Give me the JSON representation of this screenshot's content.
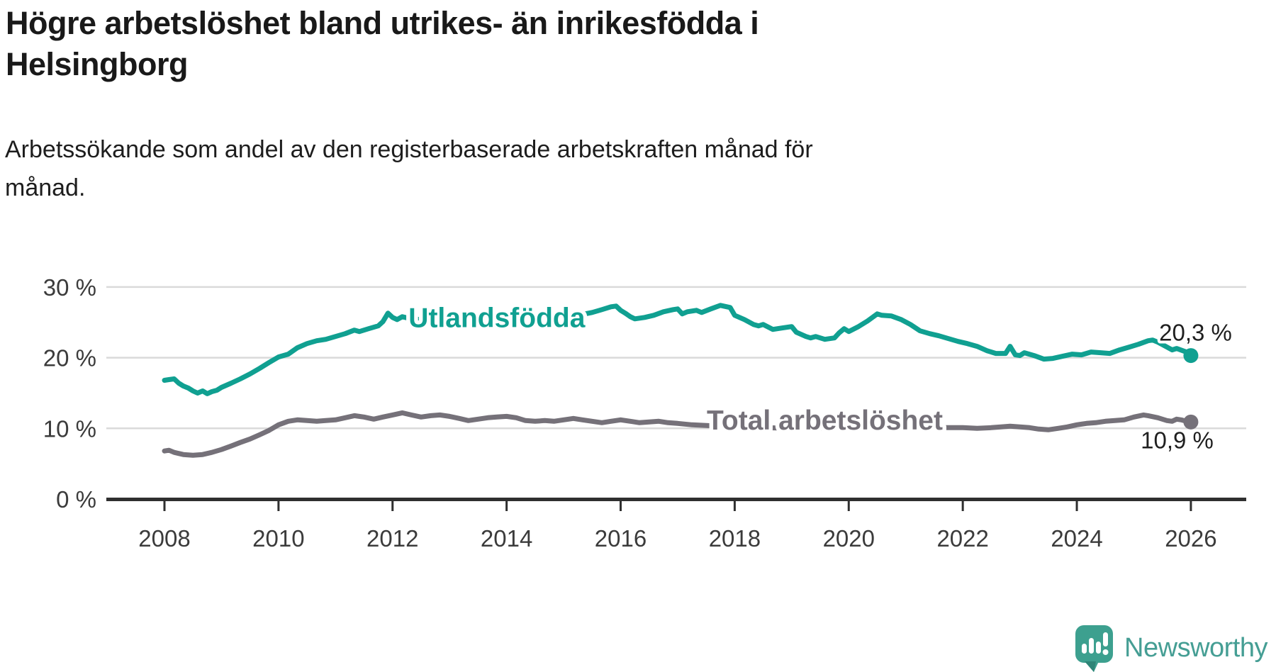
{
  "header": {
    "title_line1": "Högre arbetslöshet bland utrikes- än inrikesfödda i",
    "title_line2": "Helsingborg",
    "subtitle_line1": "Arbetssökande som andel av den registerbaserade arbetskraften månad för",
    "subtitle_line2": "månad."
  },
  "footer": {
    "brand": "Newsworthy",
    "logo_icon": "newsworthy-speech-bubble-bar-chart",
    "brand_color": "#3da08f"
  },
  "colors": {
    "teal_series": "#10a091",
    "gray_series": "#757179",
    "gridline": "#dadada",
    "axis_line": "#2f2f2f",
    "axis_text": "#3b3b3b",
    "annotation_text": "#1f1f1f",
    "background": "#ffffff"
  },
  "chart_data": {
    "type": "line",
    "title": "Högre arbetslöshet bland utrikes- än inrikesfödda i Helsingborg",
    "subtitle": "Arbetssökande som andel av den registerbaserade arbetskraften månad för månad.",
    "xlabel": "",
    "ylabel": "",
    "x_axis": {
      "ticks": [
        2008,
        2010,
        2012,
        2014,
        2016,
        2018,
        2020,
        2022,
        2024,
        2026
      ],
      "tick_labels": [
        "2008",
        "2010",
        "2012",
        "2014",
        "2016",
        "2018",
        "2020",
        "2022",
        "2024",
        "2026"
      ]
    },
    "y_axis": {
      "min": 0,
      "max": 30,
      "unit": "%",
      "ticks": [
        {
          "value": 0,
          "label": "0 %"
        },
        {
          "value": 10,
          "label": "10 %"
        },
        {
          "value": 20,
          "label": "20 %"
        },
        {
          "value": 30,
          "label": "30 %"
        }
      ]
    },
    "grid": "horizontal-only",
    "legend": "inline-labels",
    "series": [
      {
        "name": "Utlandsfödda",
        "color": "#10a091",
        "end_value": 20.3,
        "end_label": "20,3 %",
        "end_label_offset": {
          "dx": 58,
          "dy": -21,
          "anchor": "end"
        },
        "inline_label": {
          "at_year": 2012.28,
          "at_value": 24.3,
          "anchor": "start"
        },
        "points": [
          [
            2008.0,
            16.8
          ],
          [
            2008.08,
            16.9
          ],
          [
            2008.17,
            17.0
          ],
          [
            2008.25,
            16.4
          ],
          [
            2008.33,
            16.0
          ],
          [
            2008.42,
            15.7
          ],
          [
            2008.5,
            15.3
          ],
          [
            2008.58,
            15.0
          ],
          [
            2008.67,
            15.3
          ],
          [
            2008.75,
            14.9
          ],
          [
            2008.83,
            15.2
          ],
          [
            2008.92,
            15.4
          ],
          [
            2009.0,
            15.8
          ],
          [
            2009.17,
            16.4
          ],
          [
            2009.33,
            17.0
          ],
          [
            2009.5,
            17.7
          ],
          [
            2009.67,
            18.5
          ],
          [
            2009.83,
            19.3
          ],
          [
            2010.0,
            20.1
          ],
          [
            2010.17,
            20.5
          ],
          [
            2010.33,
            21.4
          ],
          [
            2010.5,
            22.0
          ],
          [
            2010.67,
            22.4
          ],
          [
            2010.83,
            22.6
          ],
          [
            2011.0,
            23.0
          ],
          [
            2011.17,
            23.4
          ],
          [
            2011.33,
            23.9
          ],
          [
            2011.42,
            23.7
          ],
          [
            2011.58,
            24.1
          ],
          [
            2011.75,
            24.5
          ],
          [
            2011.83,
            25.1
          ],
          [
            2011.92,
            26.3
          ],
          [
            2012.0,
            25.7
          ],
          [
            2012.08,
            25.4
          ],
          [
            2012.17,
            25.8
          ],
          [
            2012.33,
            25.5
          ],
          [
            2012.5,
            25.4
          ],
          [
            2012.75,
            25.6
          ],
          [
            2013.0,
            25.3
          ],
          [
            2013.25,
            25.2
          ],
          [
            2013.5,
            25.4
          ],
          [
            2013.75,
            25.2
          ],
          [
            2014.0,
            25.4
          ],
          [
            2014.25,
            25.3
          ],
          [
            2014.5,
            25.5
          ],
          [
            2014.75,
            25.4
          ],
          [
            2015.0,
            25.7
          ],
          [
            2015.25,
            26.0
          ],
          [
            2015.5,
            26.4
          ],
          [
            2015.67,
            26.8
          ],
          [
            2015.83,
            27.2
          ],
          [
            2015.92,
            27.3
          ],
          [
            2016.0,
            26.7
          ],
          [
            2016.08,
            26.3
          ],
          [
            2016.17,
            25.8
          ],
          [
            2016.25,
            25.5
          ],
          [
            2016.42,
            25.7
          ],
          [
            2016.58,
            26.0
          ],
          [
            2016.75,
            26.5
          ],
          [
            2016.92,
            26.8
          ],
          [
            2017.0,
            26.9
          ],
          [
            2017.08,
            26.2
          ],
          [
            2017.17,
            26.5
          ],
          [
            2017.33,
            26.7
          ],
          [
            2017.42,
            26.4
          ],
          [
            2017.58,
            26.9
          ],
          [
            2017.75,
            27.4
          ],
          [
            2017.92,
            27.1
          ],
          [
            2018.0,
            26.0
          ],
          [
            2018.17,
            25.4
          ],
          [
            2018.33,
            24.7
          ],
          [
            2018.42,
            24.5
          ],
          [
            2018.5,
            24.7
          ],
          [
            2018.67,
            24.0
          ],
          [
            2018.83,
            24.2
          ],
          [
            2019.0,
            24.4
          ],
          [
            2019.08,
            23.6
          ],
          [
            2019.25,
            23.0
          ],
          [
            2019.33,
            22.8
          ],
          [
            2019.42,
            23.0
          ],
          [
            2019.58,
            22.6
          ],
          [
            2019.75,
            22.8
          ],
          [
            2019.83,
            23.5
          ],
          [
            2019.92,
            24.1
          ],
          [
            2020.0,
            23.7
          ],
          [
            2020.17,
            24.4
          ],
          [
            2020.33,
            25.2
          ],
          [
            2020.5,
            26.2
          ],
          [
            2020.58,
            26.0
          ],
          [
            2020.75,
            25.9
          ],
          [
            2020.92,
            25.4
          ],
          [
            2021.08,
            24.7
          ],
          [
            2021.25,
            23.8
          ],
          [
            2021.42,
            23.4
          ],
          [
            2021.58,
            23.1
          ],
          [
            2021.75,
            22.7
          ],
          [
            2021.92,
            22.3
          ],
          [
            2022.08,
            22.0
          ],
          [
            2022.25,
            21.6
          ],
          [
            2022.42,
            21.0
          ],
          [
            2022.58,
            20.6
          ],
          [
            2022.75,
            20.6
          ],
          [
            2022.83,
            21.6
          ],
          [
            2022.92,
            20.4
          ],
          [
            2023.0,
            20.3
          ],
          [
            2023.08,
            20.7
          ],
          [
            2023.25,
            20.3
          ],
          [
            2023.42,
            19.8
          ],
          [
            2023.58,
            19.9
          ],
          [
            2023.75,
            20.2
          ],
          [
            2023.92,
            20.5
          ],
          [
            2024.08,
            20.4
          ],
          [
            2024.25,
            20.8
          ],
          [
            2024.42,
            20.7
          ],
          [
            2024.58,
            20.6
          ],
          [
            2024.75,
            21.1
          ],
          [
            2024.92,
            21.5
          ],
          [
            2025.08,
            21.9
          ],
          [
            2025.25,
            22.4
          ],
          [
            2025.33,
            22.5
          ],
          [
            2025.42,
            22.2
          ],
          [
            2025.58,
            21.5
          ],
          [
            2025.67,
            21.1
          ],
          [
            2025.75,
            21.3
          ],
          [
            2025.92,
            20.8
          ],
          [
            2026.0,
            20.3
          ]
        ]
      },
      {
        "name": "Total arbetslöshet",
        "color": "#757179",
        "end_value": 10.9,
        "end_label": "10,9 %",
        "end_label_offset": {
          "dx": 32,
          "dy": 37,
          "anchor": "end"
        },
        "inline_label": {
          "at_year": 2017.51,
          "at_value": 9.83,
          "anchor": "start"
        },
        "points": [
          [
            2008.0,
            6.8
          ],
          [
            2008.08,
            6.9
          ],
          [
            2008.17,
            6.6
          ],
          [
            2008.33,
            6.3
          ],
          [
            2008.5,
            6.2
          ],
          [
            2008.67,
            6.3
          ],
          [
            2008.83,
            6.6
          ],
          [
            2009.0,
            7.0
          ],
          [
            2009.17,
            7.5
          ],
          [
            2009.33,
            8.0
          ],
          [
            2009.5,
            8.5
          ],
          [
            2009.67,
            9.1
          ],
          [
            2009.83,
            9.7
          ],
          [
            2010.0,
            10.5
          ],
          [
            2010.17,
            11.0
          ],
          [
            2010.33,
            11.2
          ],
          [
            2010.5,
            11.1
          ],
          [
            2010.67,
            11.0
          ],
          [
            2010.83,
            11.1
          ],
          [
            2011.0,
            11.2
          ],
          [
            2011.17,
            11.5
          ],
          [
            2011.33,
            11.8
          ],
          [
            2011.5,
            11.6
          ],
          [
            2011.67,
            11.3
          ],
          [
            2011.83,
            11.6
          ],
          [
            2012.0,
            11.9
          ],
          [
            2012.17,
            12.2
          ],
          [
            2012.33,
            11.9
          ],
          [
            2012.5,
            11.6
          ],
          [
            2012.67,
            11.8
          ],
          [
            2012.83,
            11.9
          ],
          [
            2013.0,
            11.7
          ],
          [
            2013.17,
            11.4
          ],
          [
            2013.33,
            11.1
          ],
          [
            2013.5,
            11.3
          ],
          [
            2013.67,
            11.5
          ],
          [
            2013.83,
            11.6
          ],
          [
            2014.0,
            11.7
          ],
          [
            2014.17,
            11.5
          ],
          [
            2014.33,
            11.1
          ],
          [
            2014.5,
            11.0
          ],
          [
            2014.67,
            11.1
          ],
          [
            2014.83,
            11.0
          ],
          [
            2015.0,
            11.2
          ],
          [
            2015.17,
            11.4
          ],
          [
            2015.33,
            11.2
          ],
          [
            2015.5,
            11.0
          ],
          [
            2015.67,
            10.8
          ],
          [
            2015.83,
            11.0
          ],
          [
            2016.0,
            11.2
          ],
          [
            2016.17,
            11.0
          ],
          [
            2016.33,
            10.8
          ],
          [
            2016.5,
            10.9
          ],
          [
            2016.67,
            11.0
          ],
          [
            2016.83,
            10.8
          ],
          [
            2017.0,
            10.7
          ],
          [
            2017.25,
            10.5
          ],
          [
            2017.5,
            10.4
          ],
          [
            2017.75,
            10.3
          ],
          [
            2018.0,
            10.2
          ],
          [
            2018.5,
            10.1
          ],
          [
            2019.0,
            10.0
          ],
          [
            2019.5,
            10.0
          ],
          [
            2020.0,
            10.1
          ],
          [
            2020.5,
            10.2
          ],
          [
            2021.0,
            10.2
          ],
          [
            2021.5,
            10.1
          ],
          [
            2022.0,
            10.1
          ],
          [
            2022.25,
            10.0
          ],
          [
            2022.5,
            10.1
          ],
          [
            2022.67,
            10.2
          ],
          [
            2022.83,
            10.3
          ],
          [
            2023.0,
            10.2
          ],
          [
            2023.17,
            10.1
          ],
          [
            2023.33,
            9.9
          ],
          [
            2023.5,
            9.8
          ],
          [
            2023.67,
            10.0
          ],
          [
            2023.83,
            10.2
          ],
          [
            2024.0,
            10.5
          ],
          [
            2024.17,
            10.7
          ],
          [
            2024.33,
            10.8
          ],
          [
            2024.5,
            11.0
          ],
          [
            2024.67,
            11.1
          ],
          [
            2024.83,
            11.2
          ],
          [
            2025.0,
            11.6
          ],
          [
            2025.17,
            11.9
          ],
          [
            2025.25,
            11.8
          ],
          [
            2025.42,
            11.5
          ],
          [
            2025.58,
            11.1
          ],
          [
            2025.67,
            11.0
          ],
          [
            2025.75,
            11.3
          ],
          [
            2025.83,
            11.2
          ],
          [
            2025.92,
            11.0
          ],
          [
            2026.0,
            10.9
          ]
        ]
      }
    ]
  }
}
